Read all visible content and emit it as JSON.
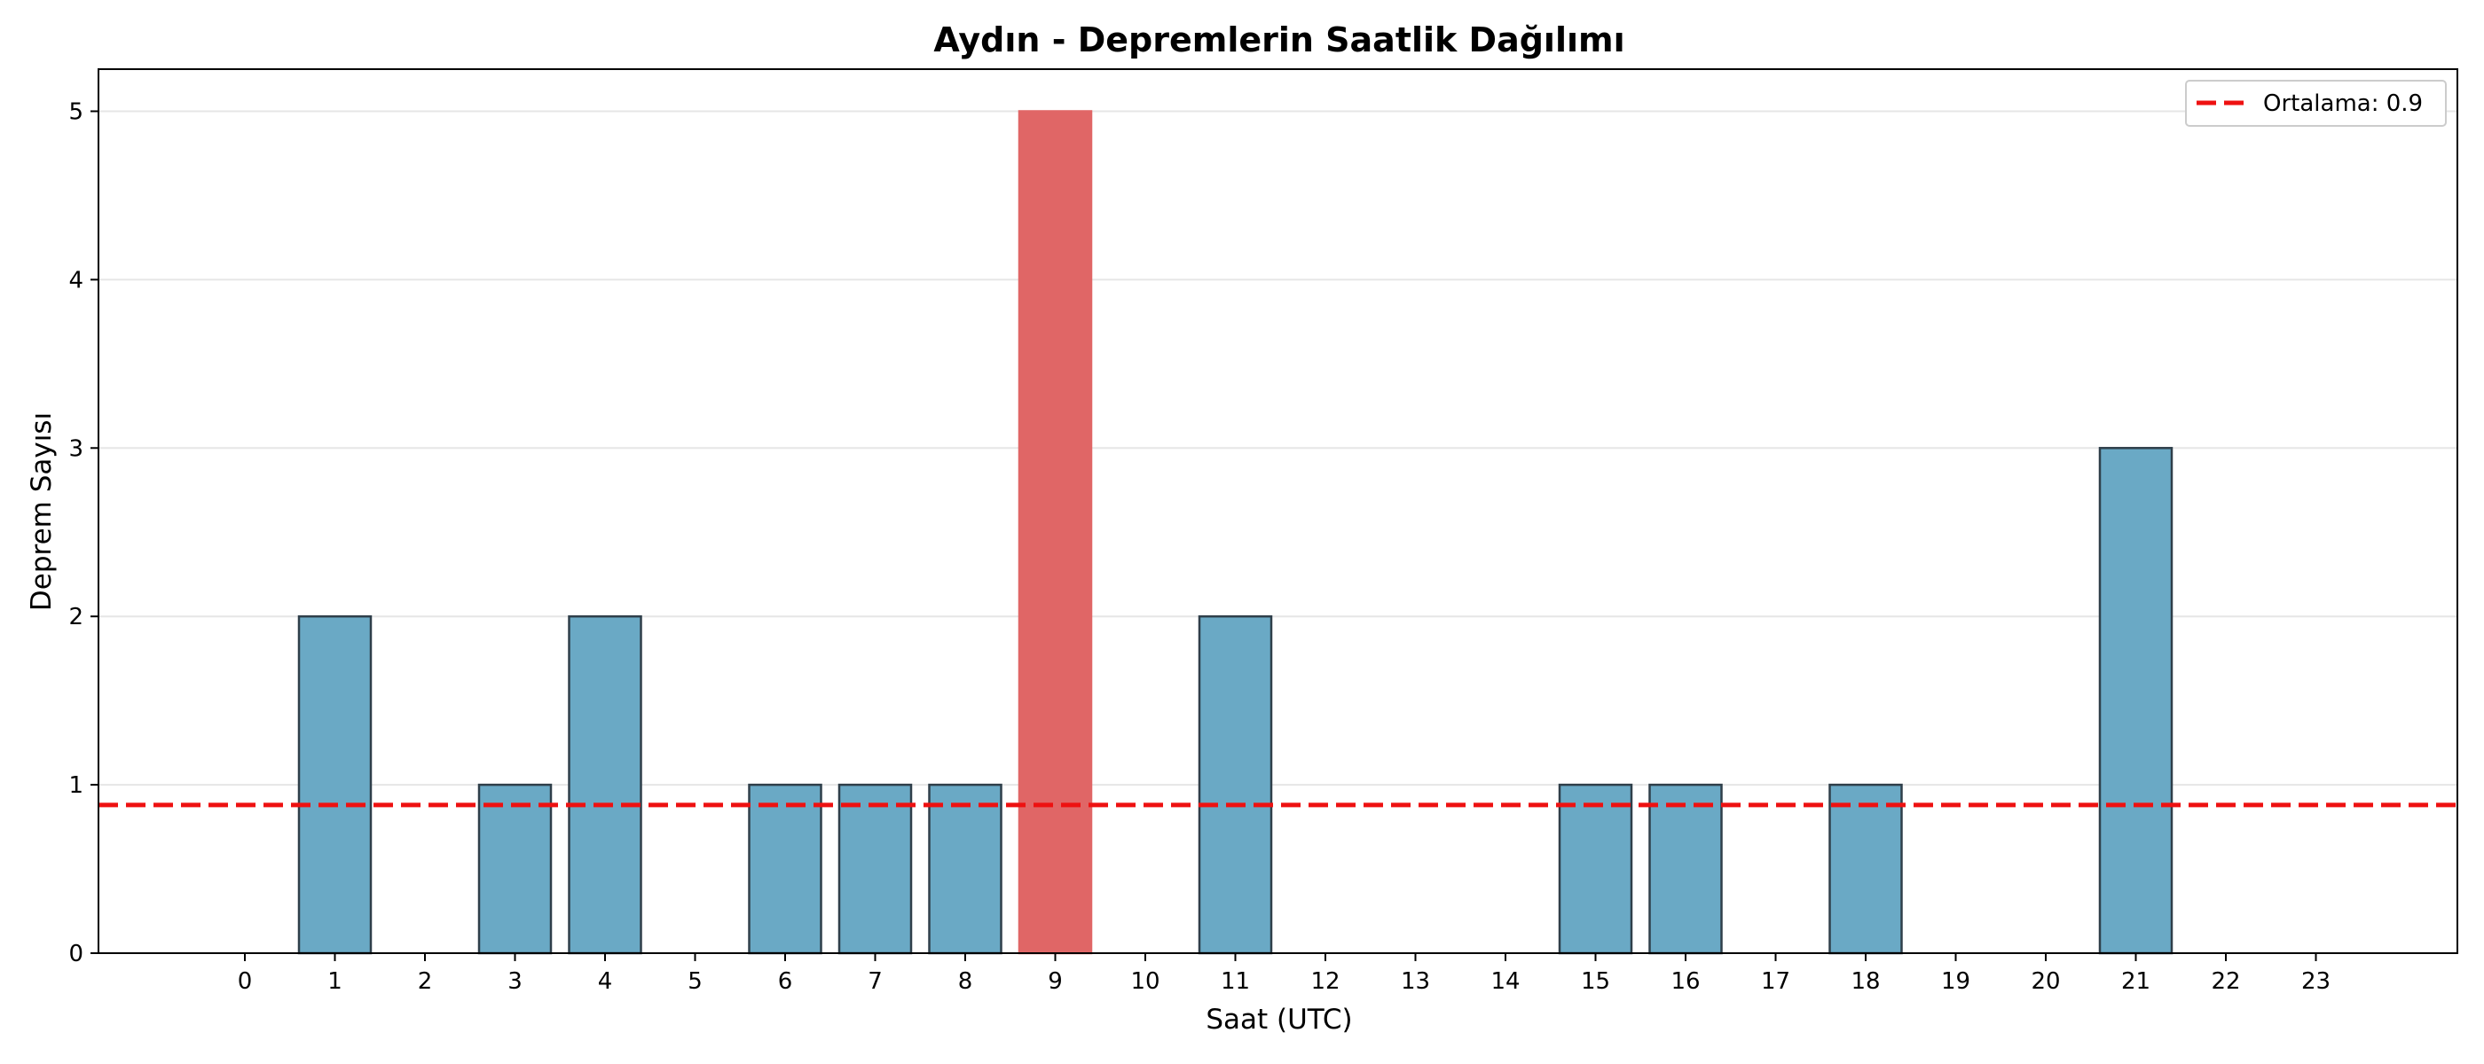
{
  "chart_data": {
    "type": "bar",
    "title": "Aydın - Depremlerin Saatlik Dağılımı",
    "xlabel": "Saat (UTC)",
    "ylabel": "Deprem Sayısı",
    "categories": [
      "0",
      "1",
      "2",
      "3",
      "4",
      "5",
      "6",
      "7",
      "8",
      "9",
      "10",
      "11",
      "12",
      "13",
      "14",
      "15",
      "16",
      "17",
      "18",
      "19",
      "20",
      "21",
      "22",
      "23"
    ],
    "values": [
      0,
      2,
      0,
      1,
      2,
      0,
      1,
      1,
      1,
      5,
      0,
      2,
      0,
      0,
      0,
      1,
      1,
      0,
      1,
      0,
      0,
      3,
      0,
      0
    ],
    "highlight_category": "9",
    "mean_line": {
      "value": 0.88,
      "label": "Ortalama: 0.9"
    },
    "ylim": [
      0,
      5.25
    ],
    "yticks": [
      0,
      1,
      2,
      3,
      4,
      5
    ],
    "grid": "y",
    "legend": "top-right",
    "colors": {
      "bar": "#6aa9c5",
      "bar_edge": "#2f3f4a",
      "highlight": "#e06666",
      "mean_line": "#ee1111",
      "grid": "#e6e6e6"
    }
  }
}
